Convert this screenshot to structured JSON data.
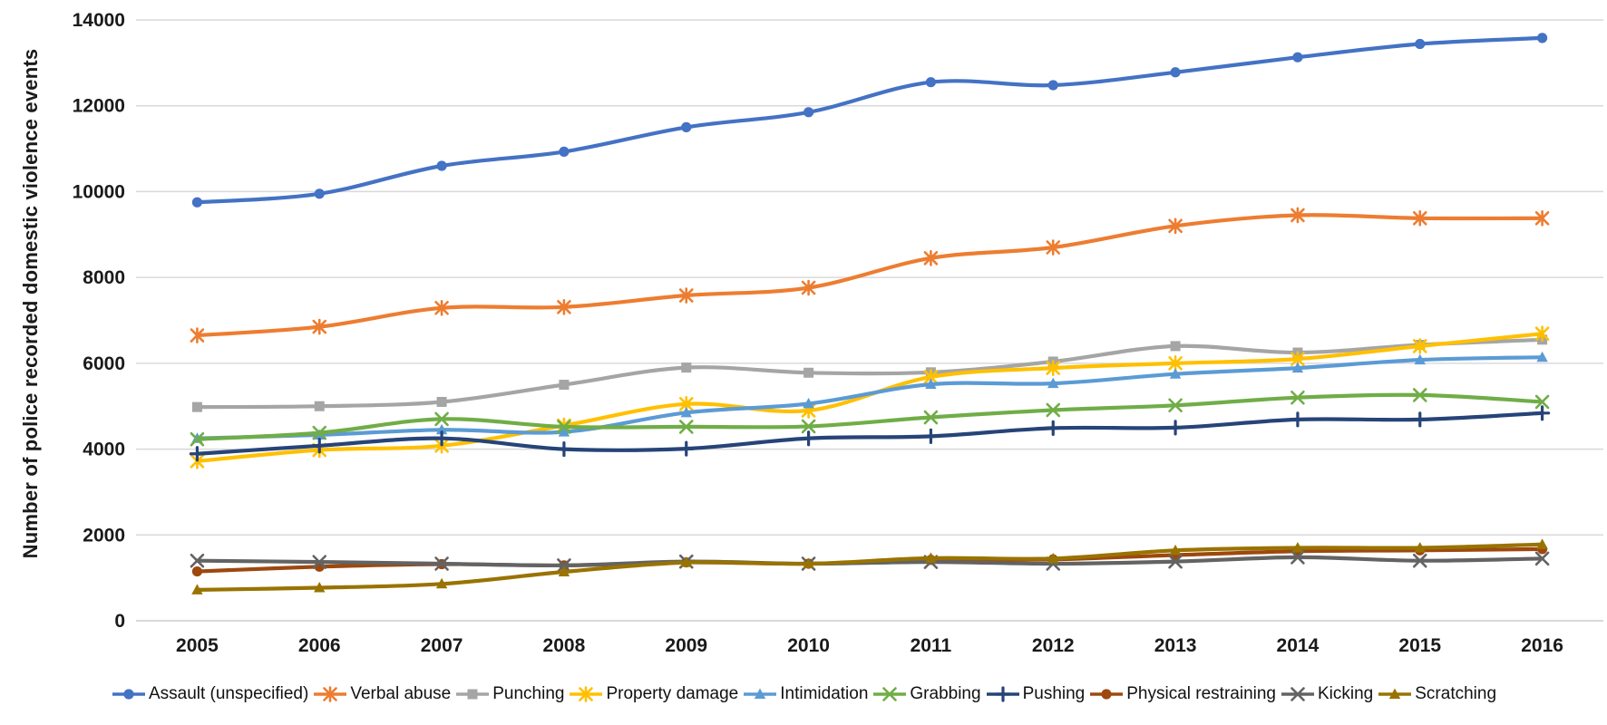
{
  "chart_data": {
    "type": "line",
    "title": "",
    "xlabel": "",
    "ylabel": "Number of police recorded domestic violence events",
    "categories": [
      "2005",
      "2006",
      "2007",
      "2008",
      "2009",
      "2010",
      "2011",
      "2012",
      "2013",
      "2014",
      "2015",
      "2016"
    ],
    "ylim": [
      0,
      14000
    ],
    "yticks": [
      0,
      2000,
      4000,
      6000,
      8000,
      10000,
      12000,
      14000
    ],
    "grid": "horizontal",
    "line_style": "smooth",
    "legend_position": "bottom",
    "series": [
      {
        "name": "Assault (unspecified)",
        "color": "#4472C4",
        "marker": "circle",
        "values": [
          9750,
          9950,
          10600,
          10930,
          11500,
          11850,
          12550,
          12480,
          12780,
          13130,
          13440,
          13580
        ]
      },
      {
        "name": "Verbal abuse",
        "color": "#ED7D31",
        "marker": "asterisk",
        "values": [
          6650,
          6850,
          7290,
          7310,
          7580,
          7760,
          8450,
          8700,
          9200,
          9450,
          9380,
          9380
        ]
      },
      {
        "name": "Punching",
        "color": "#A5A5A5",
        "marker": "square",
        "values": [
          4980,
          5000,
          5100,
          5500,
          5900,
          5780,
          5790,
          6040,
          6400,
          6250,
          6430,
          6550
        ]
      },
      {
        "name": "Property damage",
        "color": "#FFC000",
        "marker": "asterisk",
        "values": [
          3720,
          3980,
          4080,
          4550,
          5050,
          4900,
          5680,
          5890,
          6000,
          6100,
          6400,
          6690
        ]
      },
      {
        "name": "Intimidation",
        "color": "#5B9BD5",
        "marker": "triangle",
        "values": [
          4250,
          4330,
          4450,
          4400,
          4850,
          5060,
          5510,
          5530,
          5750,
          5890,
          6080,
          6140
        ]
      },
      {
        "name": "Grabbing",
        "color": "#70AD47",
        "marker": "x",
        "values": [
          4230,
          4380,
          4700,
          4520,
          4520,
          4530,
          4740,
          4910,
          5020,
          5200,
          5260,
          5100
        ]
      },
      {
        "name": "Pushing",
        "color": "#264478",
        "marker": "plus",
        "values": [
          3890,
          4080,
          4250,
          4000,
          4010,
          4250,
          4300,
          4490,
          4500,
          4690,
          4690,
          4840
        ]
      },
      {
        "name": "Physical restraining",
        "color": "#9E480E",
        "marker": "circle",
        "values": [
          1150,
          1260,
          1320,
          1290,
          1360,
          1330,
          1420,
          1430,
          1530,
          1620,
          1640,
          1670
        ]
      },
      {
        "name": "Kicking",
        "color": "#636363",
        "marker": "x",
        "values": [
          1400,
          1370,
          1330,
          1290,
          1380,
          1330,
          1370,
          1330,
          1380,
          1480,
          1400,
          1450
        ]
      },
      {
        "name": "Scratching",
        "color": "#997300",
        "marker": "triangle",
        "values": [
          720,
          770,
          860,
          1140,
          1360,
          1330,
          1460,
          1450,
          1640,
          1700,
          1700,
          1780
        ]
      }
    ]
  },
  "style": {
    "grid_color": "#D9D9D9",
    "tick_text_color": "#1a1a1a"
  }
}
